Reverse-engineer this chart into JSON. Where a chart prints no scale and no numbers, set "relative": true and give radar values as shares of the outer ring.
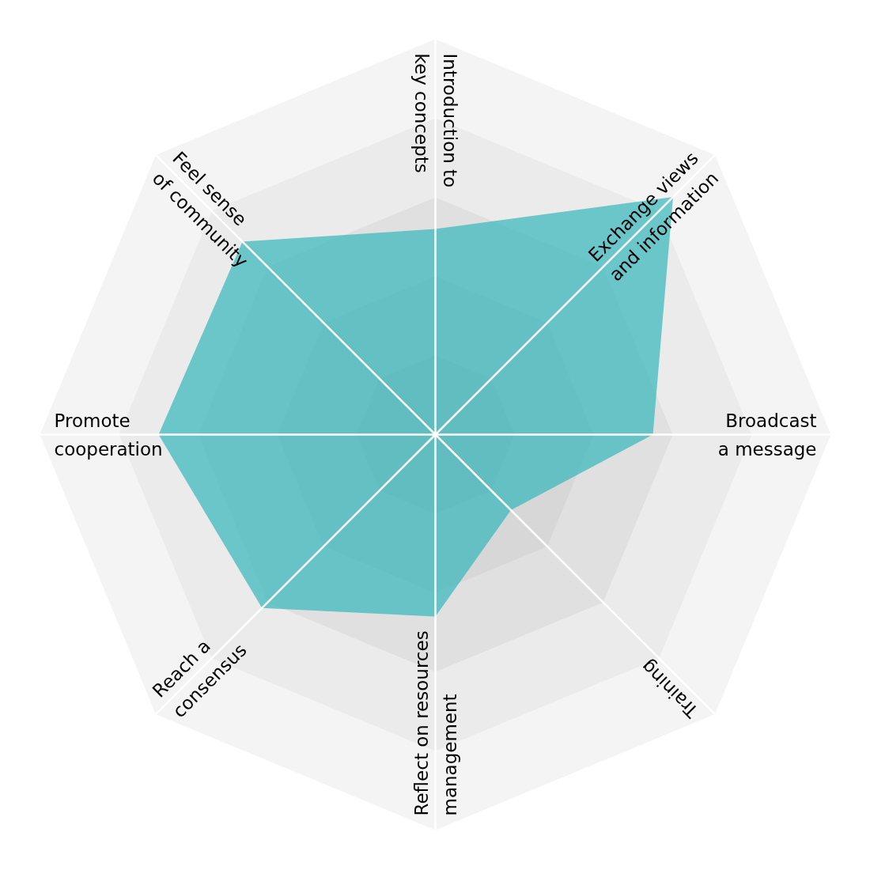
{
  "chart_data": {
    "type": "radar",
    "relative": true,
    "grid": true,
    "categories": [
      "Introduction to\nkey concepts",
      "Exchange views\nand information",
      "Broadcast\na message",
      "Training",
      "Reflect on resources\nmanagement",
      "Reach a\nconsensus",
      "Promote\ncooperation",
      "Feel sense\nof community"
    ],
    "series": [
      {
        "color": "#33b7bb",
        "values": [
          0.52,
          0.85,
          0.55,
          0.27,
          0.46,
          0.62,
          0.7,
          0.69
        ]
      }
    ]
  }
}
